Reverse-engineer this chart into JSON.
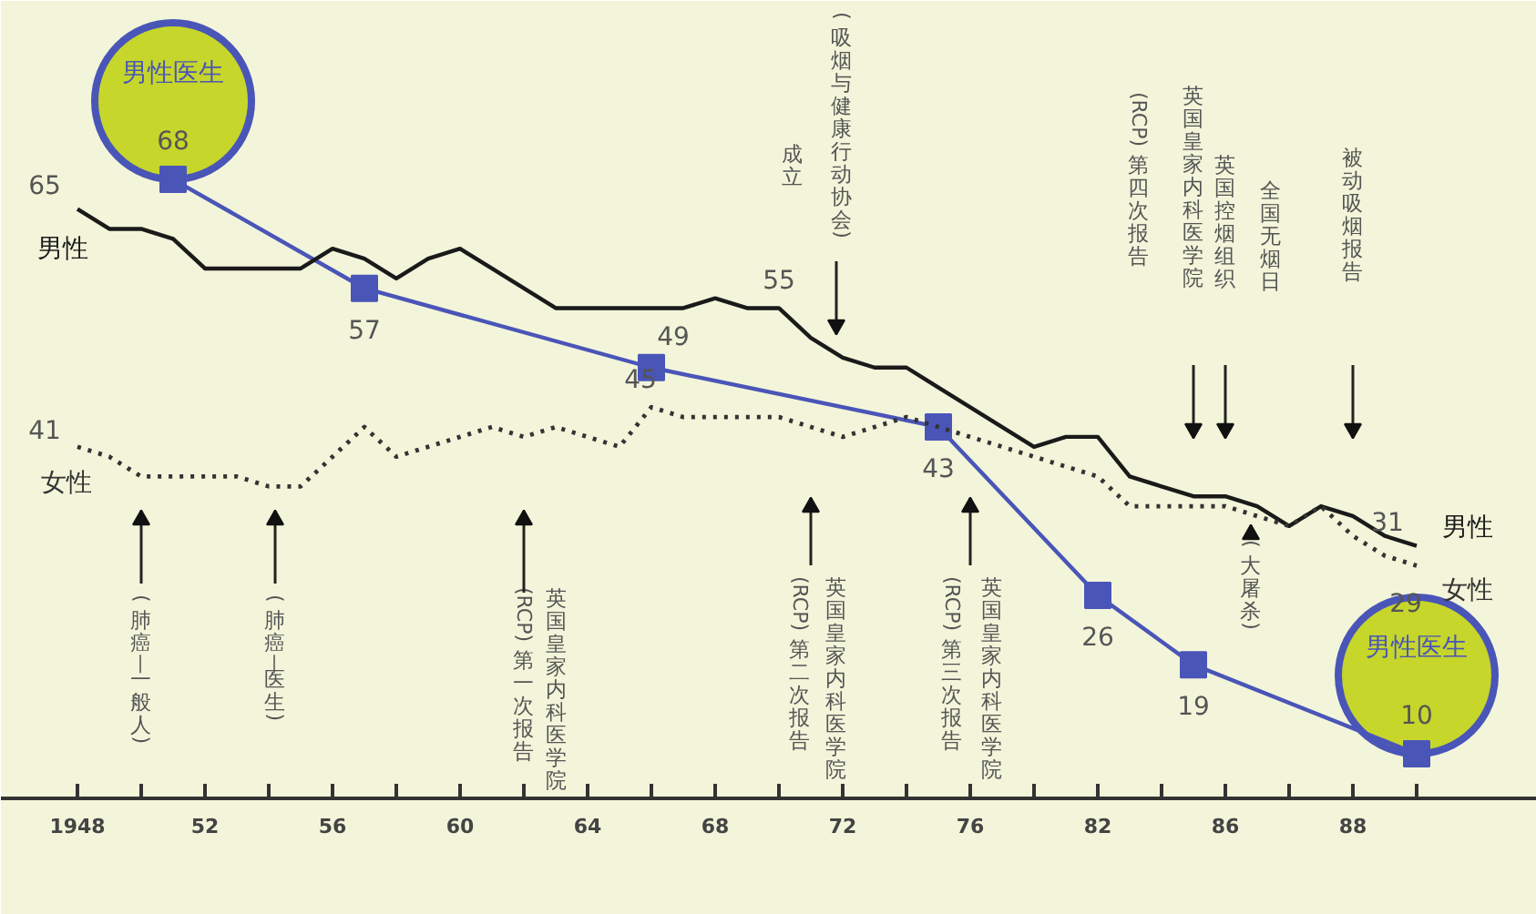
{
  "chart_data": {
    "type": "line",
    "categories": [
      "1948",
      null,
      null,
      null,
      "52",
      null,
      null,
      null,
      "56",
      null,
      null,
      null,
      "60",
      null,
      null,
      null,
      "64",
      null,
      null,
      null,
      "68",
      null,
      null,
      null,
      "72",
      null,
      null,
      null,
      "76",
      null,
      null,
      null,
      "82",
      null,
      null,
      null,
      "86",
      null,
      null,
      null,
      "88",
      null,
      null
    ],
    "series": [
      {
        "name": "男性",
        "color": "#1a1a1a",
        "line_style": "solid",
        "marker": "none",
        "values": [
          65,
          63,
          63,
          62,
          59,
          59,
          59,
          59,
          61,
          60,
          58,
          60,
          61,
          59,
          57,
          55,
          55,
          55,
          55,
          55,
          56,
          55,
          55,
          52,
          50,
          49,
          49,
          47,
          45,
          43,
          41,
          42,
          42,
          38,
          37,
          36,
          36,
          35,
          33,
          35,
          34,
          32,
          31
        ],
        "value_labels": [
          "65",
          null,
          null,
          null,
          null,
          null,
          null,
          null,
          null,
          null,
          null,
          null,
          null,
          null,
          null,
          null,
          null,
          null,
          null,
          null,
          null,
          null,
          "55",
          null,
          null,
          null,
          null,
          null,
          null,
          null,
          null,
          null,
          null,
          null,
          null,
          null,
          null,
          null,
          null,
          null,
          null,
          null,
          "31"
        ]
      },
      {
        "name": "女性",
        "color": "#333333",
        "line_style": "dotted",
        "marker": "none",
        "values": [
          41,
          40,
          38,
          38,
          38,
          38,
          37,
          37,
          40,
          43,
          40,
          41,
          42,
          43,
          42,
          43,
          42,
          41,
          45,
          44,
          44,
          44,
          44,
          43,
          42,
          43,
          44,
          43,
          42,
          41,
          40,
          39,
          38,
          35,
          35,
          35,
          35,
          34,
          33,
          35,
          32,
          30,
          29
        ],
        "value_labels": [
          "41",
          null,
          null,
          null,
          null,
          null,
          null,
          null,
          null,
          null,
          null,
          null,
          null,
          null,
          null,
          null,
          null,
          null,
          "45",
          null,
          null,
          null,
          null,
          null,
          null,
          null,
          null,
          null,
          null,
          null,
          null,
          null,
          null,
          null,
          null,
          null,
          null,
          null,
          null,
          null,
          null,
          null,
          "29"
        ]
      },
      {
        "name": "男性医生",
        "color": "#4a55b8",
        "line_style": "solid",
        "marker": "square",
        "values": [
          null,
          null,
          null,
          68,
          null,
          null,
          null,
          null,
          null,
          57,
          null,
          null,
          null,
          null,
          null,
          null,
          null,
          null,
          49,
          null,
          null,
          null,
          null,
          null,
          null,
          null,
          null,
          43,
          null,
          null,
          null,
          null,
          26,
          null,
          null,
          19,
          null,
          null,
          null,
          null,
          null,
          null,
          10
        ],
        "value_labels": [
          null,
          null,
          null,
          "68",
          null,
          null,
          null,
          null,
          null,
          "57",
          null,
          null,
          null,
          null,
          null,
          null,
          null,
          null,
          "49",
          null,
          null,
          null,
          null,
          null,
          null,
          null,
          null,
          "43",
          null,
          null,
          null,
          null,
          "26",
          null,
          null,
          "19",
          null,
          null,
          null,
          null,
          null,
          null,
          "10"
        ]
      }
    ],
    "annotations": [
      "(肺癌—一般人)",
      "(肺癌—医生)",
      "英国皇家内科医学院",
      "(RCP)第一次报告",
      "英国皇家内科医学院",
      "(RCP)第二次报告",
      "英国皇家内科医学院",
      "(RCP)第三次报告",
      "(大屠杀)",
      "(吸烟与健康行动协会)",
      "成立",
      "英国皇家内科医学院",
      "(RCP)第四次报告",
      "英国控烟组织",
      "全国无烟日",
      "被动吸烟报告"
    ],
    "grid": false
  }
}
